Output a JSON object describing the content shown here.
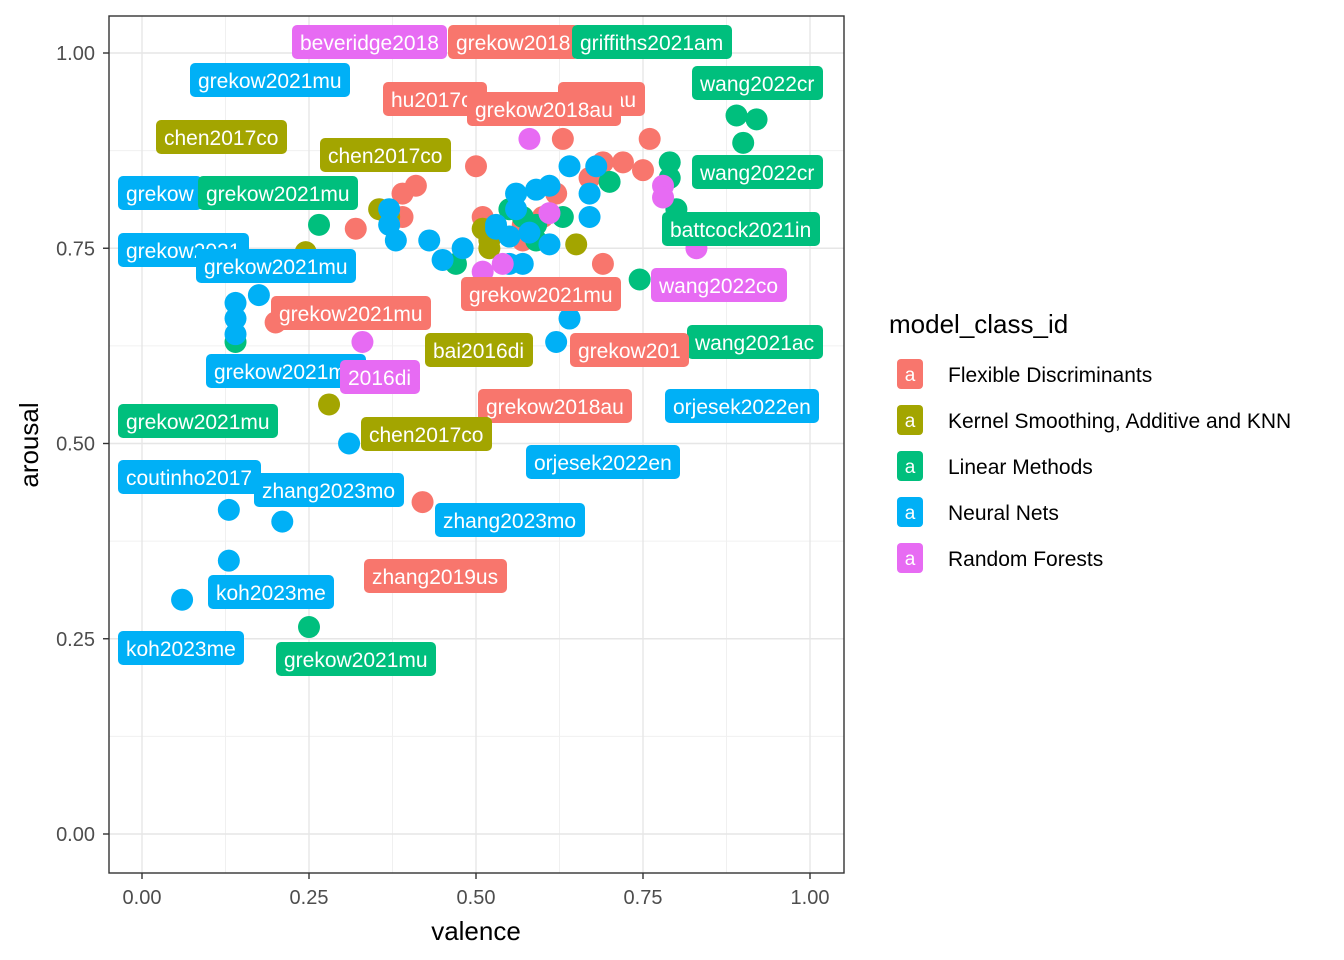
{
  "chart_data": {
    "type": "scatter",
    "xlabel": "valence",
    "ylabel": "arousal",
    "xlim": [
      -0.05,
      1.05
    ],
    "ylim": [
      -0.05,
      1.05
    ],
    "x_ticks": [
      "0.00",
      "0.25",
      "0.50",
      "0.75",
      "1.00"
    ],
    "y_ticks": [
      "0.00",
      "0.25",
      "0.50",
      "0.75",
      "1.00"
    ],
    "grid": true,
    "legend": {
      "title": "model_class_id",
      "position": "right",
      "key_glyph": "a",
      "items": [
        {
          "name": "Flexible Discriminants",
          "color": "#F8766D"
        },
        {
          "name": "Kernel Smoothing, Additive and KNN",
          "color": "#A3A500"
        },
        {
          "name": "Linear Methods",
          "color": "#00BF7D"
        },
        {
          "name": "Neural Nets",
          "color": "#00B0F6"
        },
        {
          "name": "Random Forests",
          "color": "#E76BF3"
        }
      ]
    },
    "series": [
      {
        "name": "Flexible Discriminants",
        "color": "#F8766D",
        "points": [
          [
            0.5,
            0.855
          ],
          [
            0.51,
            0.79
          ],
          [
            0.41,
            0.83
          ],
          [
            0.39,
            0.82
          ],
          [
            0.39,
            0.79
          ],
          [
            0.32,
            0.775
          ],
          [
            0.63,
            0.89
          ],
          [
            0.69,
            0.86
          ],
          [
            0.72,
            0.86
          ],
          [
            0.76,
            0.89
          ],
          [
            0.75,
            0.85
          ],
          [
            0.62,
            0.82
          ],
          [
            0.69,
            0.73
          ],
          [
            0.2,
            0.655
          ],
          [
            0.42,
            0.425
          ],
          [
            0.57,
            0.78
          ],
          [
            0.57,
            0.76
          ],
          [
            0.67,
            0.84
          ],
          [
            0.53,
            0.77
          ],
          [
            0.6,
            0.79
          ]
        ]
      },
      {
        "name": "Kernel Smoothing, Additive and KNN",
        "color": "#A3A500",
        "points": [
          [
            0.245,
            0.745
          ],
          [
            0.355,
            0.8
          ],
          [
            0.28,
            0.55
          ],
          [
            0.51,
            0.775
          ],
          [
            0.52,
            0.76
          ],
          [
            0.52,
            0.75
          ],
          [
            0.65,
            0.755
          ],
          [
            0.37,
            0.79
          ]
        ]
      },
      {
        "name": "Linear Methods",
        "color": "#00BF7D",
        "points": [
          [
            0.265,
            0.78
          ],
          [
            0.14,
            0.63
          ],
          [
            0.25,
            0.265
          ],
          [
            0.47,
            0.73
          ],
          [
            0.57,
            0.79
          ],
          [
            0.59,
            0.78
          ],
          [
            0.63,
            0.79
          ],
          [
            0.7,
            0.835
          ],
          [
            0.79,
            0.86
          ],
          [
            0.8,
            0.8
          ],
          [
            0.79,
            0.84
          ],
          [
            0.89,
            0.92
          ],
          [
            0.92,
            0.915
          ],
          [
            0.9,
            0.885
          ],
          [
            0.745,
            0.71
          ],
          [
            0.59,
            0.76
          ],
          [
            0.55,
            0.8
          ]
        ]
      },
      {
        "name": "Neural Nets",
        "color": "#00B0F6",
        "points": [
          [
            0.37,
            0.78
          ],
          [
            0.37,
            0.8
          ],
          [
            0.38,
            0.76
          ],
          [
            0.43,
            0.76
          ],
          [
            0.45,
            0.735
          ],
          [
            0.48,
            0.75
          ],
          [
            0.53,
            0.78
          ],
          [
            0.56,
            0.82
          ],
          [
            0.59,
            0.825
          ],
          [
            0.61,
            0.83
          ],
          [
            0.64,
            0.855
          ],
          [
            0.68,
            0.855
          ],
          [
            0.67,
            0.82
          ],
          [
            0.67,
            0.79
          ],
          [
            0.55,
            0.73
          ],
          [
            0.57,
            0.73
          ],
          [
            0.55,
            0.765
          ],
          [
            0.53,
            0.775
          ],
          [
            0.61,
            0.755
          ],
          [
            0.14,
            0.68
          ],
          [
            0.14,
            0.66
          ],
          [
            0.14,
            0.64
          ],
          [
            0.175,
            0.69
          ],
          [
            0.13,
            0.415
          ],
          [
            0.13,
            0.35
          ],
          [
            0.21,
            0.4
          ],
          [
            0.06,
            0.3
          ],
          [
            0.31,
            0.5
          ],
          [
            0.62,
            0.63
          ],
          [
            0.64,
            0.66
          ],
          [
            0.58,
            0.77
          ],
          [
            0.56,
            0.8
          ]
        ]
      },
      {
        "name": "Random Forests",
        "color": "#E76BF3",
        "points": [
          [
            0.58,
            0.89
          ],
          [
            0.61,
            0.795
          ],
          [
            0.51,
            0.72
          ],
          [
            0.33,
            0.63
          ],
          [
            0.78,
            0.83
          ],
          [
            0.78,
            0.815
          ],
          [
            0.83,
            0.75
          ],
          [
            0.54,
            0.73
          ]
        ]
      }
    ],
    "annotations": [
      {
        "text": "beveridge2018",
        "color": "#E76BF3"
      },
      {
        "text": "grekow2018",
        "color": "#F8766D"
      },
      {
        "text": "griffiths2021am",
        "color": "#00BF7D"
      },
      {
        "text": "grekow2021mu",
        "color": "#00B0F6"
      },
      {
        "text": "wang2022cr",
        "color": "#00BF7D"
      },
      {
        "text": "hu2017cr",
        "color": "#F8766D"
      },
      {
        "text": "2018au",
        "color": "#F8766D"
      },
      {
        "text": "grekow2018au",
        "color": "#F8766D"
      },
      {
        "text": "chen2017co",
        "color": "#A3A500"
      },
      {
        "text": "chen2017co",
        "color": "#A3A500"
      },
      {
        "text": "wang2022cr",
        "color": "#00BF7D"
      },
      {
        "text": "grekow",
        "color": "#00B0F6"
      },
      {
        "text": "grekow2021mu",
        "color": "#00BF7D"
      },
      {
        "text": "battcock2021in",
        "color": "#00BF7D"
      },
      {
        "text": "grekow2021",
        "color": "#00B0F6"
      },
      {
        "text": "grekow2021mu",
        "color": "#00B0F6"
      },
      {
        "text": "wang2022co",
        "color": "#E76BF3"
      },
      {
        "text": "grekow2021mu",
        "color": "#F8766D"
      },
      {
        "text": "grekow2021mu",
        "color": "#F8766D"
      },
      {
        "text": "wang2021ac",
        "color": "#00BF7D"
      },
      {
        "text": "bai2016di",
        "color": "#A3A500"
      },
      {
        "text": "grekow201",
        "color": "#F8766D"
      },
      {
        "text": "grekow2021mu",
        "color": "#00B0F6"
      },
      {
        "text": "2016di",
        "color": "#E76BF3"
      },
      {
        "text": "grekow2018au",
        "color": "#F8766D"
      },
      {
        "text": "orjesek2022en",
        "color": "#00B0F6"
      },
      {
        "text": "grekow2021mu",
        "color": "#00BF7D"
      },
      {
        "text": "chen2017co",
        "color": "#A3A500"
      },
      {
        "text": "orjesek2022en",
        "color": "#00B0F6"
      },
      {
        "text": "coutinho2017",
        "color": "#00B0F6"
      },
      {
        "text": "zhang2023mo",
        "color": "#00B0F6"
      },
      {
        "text": "zhang2023mo",
        "color": "#00B0F6"
      },
      {
        "text": "zhang2019us",
        "color": "#F8766D"
      },
      {
        "text": "koh2023me",
        "color": "#00B0F6"
      },
      {
        "text": "koh2023me",
        "color": "#00B0F6"
      },
      {
        "text": "grekow2021mu",
        "color": "#00BF7D"
      }
    ]
  }
}
